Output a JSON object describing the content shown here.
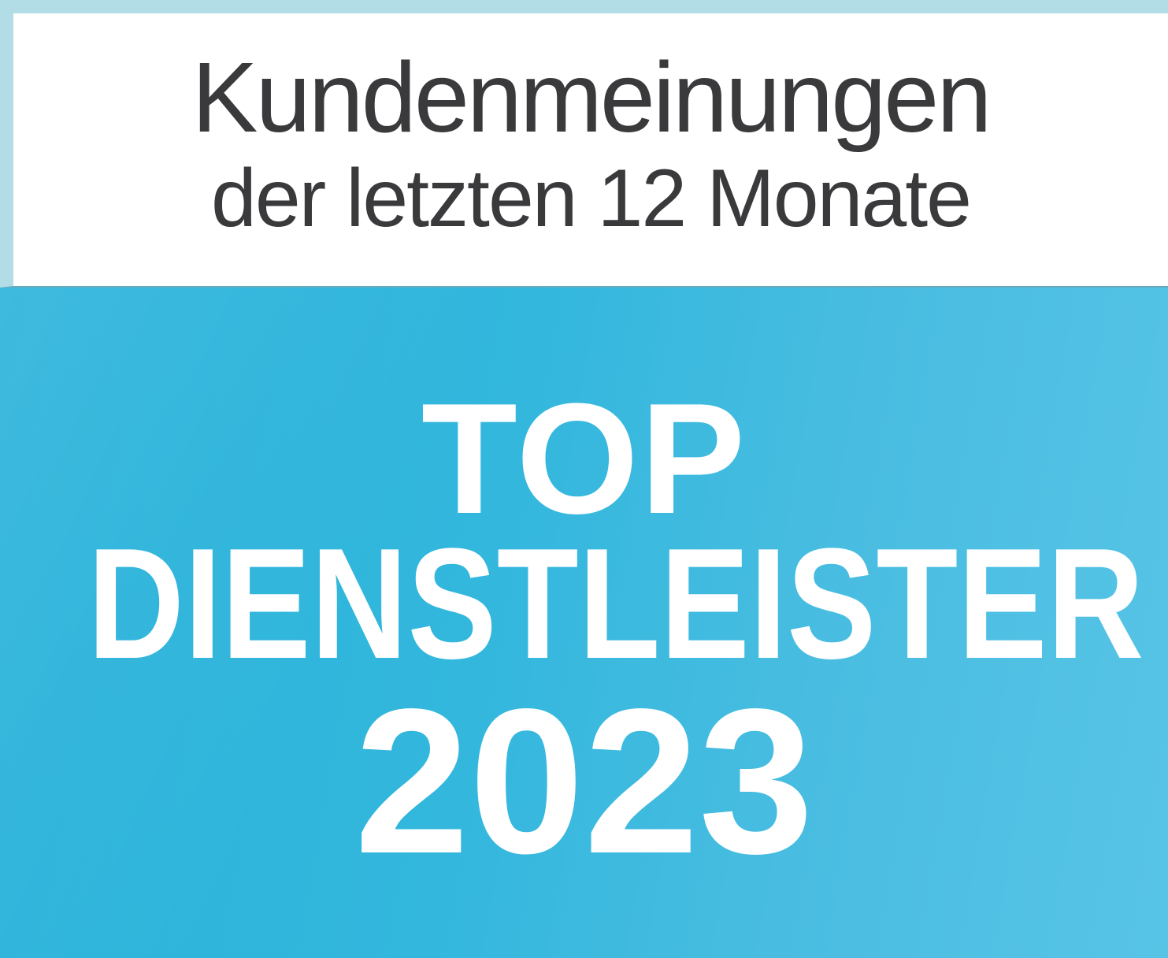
{
  "badge": {
    "header": {
      "line1": "Kundenmeinungen",
      "line2": "der letzten 12 Monate"
    },
    "award": {
      "line1": "TOP",
      "line2": "DIENSTLEISTER",
      "line3": "2023"
    },
    "colors": {
      "header_text": "#3a3a3c",
      "award_text": "#ffffff",
      "frame_light_blue": "#b2dde7",
      "panel_white": "#ffffff",
      "blue_gradient_start": "#29b2da",
      "blue_gradient_end": "#57c4e6",
      "divider_teal": "#66aabf"
    }
  }
}
